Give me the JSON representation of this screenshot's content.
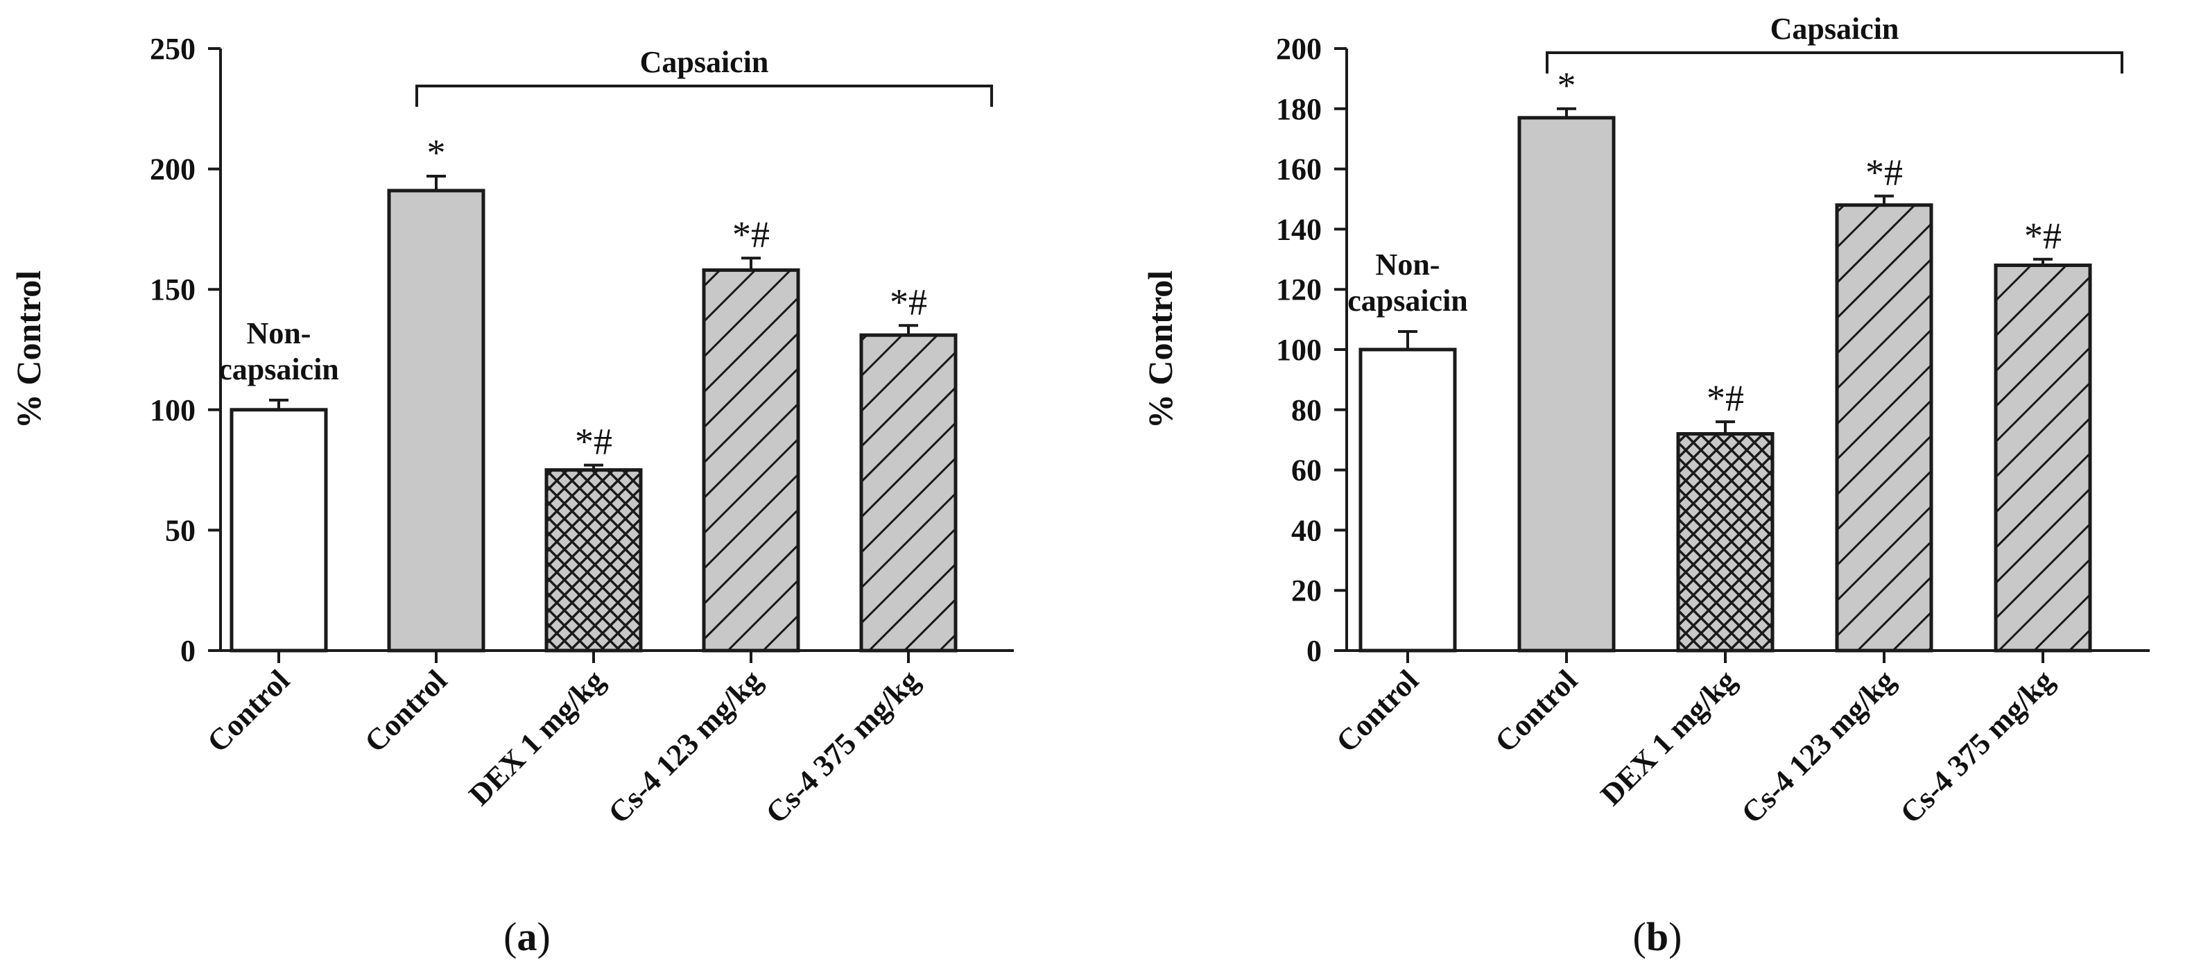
{
  "chart_data": [
    {
      "type": "bar",
      "panel_label": "(a)",
      "panel_letter": "a",
      "ylabel": "% Control",
      "xlabel": "",
      "ylim": [
        0,
        250
      ],
      "yticks": [
        0,
        50,
        100,
        150,
        200,
        250
      ],
      "categories": [
        "Control",
        "Control",
        "DEX 1 mg/kg",
        "Cs-4 123 mg/kg",
        "Cs-4 375 mg/kg"
      ],
      "values": [
        100,
        191,
        75,
        158,
        131
      ],
      "errors": [
        4,
        6,
        2,
        5,
        4
      ],
      "patterns": [
        "white",
        "solid-gray",
        "crosshatch",
        "diagonal",
        "diagonal"
      ],
      "significance": [
        "",
        "*",
        "*#",
        "*#",
        "*#"
      ],
      "annotation": "Non-\ncapsaicin",
      "bracket_label": "Capsaicin",
      "bracket_span": [
        1,
        4
      ]
    },
    {
      "type": "bar",
      "panel_label": "(b)",
      "panel_letter": "b",
      "ylabel": "% Control",
      "xlabel": "",
      "ylim": [
        0,
        200
      ],
      "yticks": [
        0,
        20,
        40,
        60,
        80,
        100,
        120,
        140,
        160,
        180,
        200
      ],
      "categories": [
        "Control",
        "Control",
        "DEX 1 mg/kg",
        "Cs-4 123 mg/kg",
        "Cs-4 375 mg/kg"
      ],
      "values": [
        100,
        177,
        72,
        148,
        128
      ],
      "errors": [
        6,
        3,
        4,
        3,
        2
      ],
      "patterns": [
        "white",
        "solid-gray",
        "crosshatch",
        "diagonal",
        "diagonal"
      ],
      "significance": [
        "",
        "*",
        "*#",
        "*#",
        "*#"
      ],
      "annotation": "Non-\ncapsaicin",
      "bracket_label": "Capsaicin",
      "bracket_span": [
        1,
        4
      ]
    }
  ],
  "colors": {
    "gray_fill": "#c8c8c8",
    "white_fill": "#ffffff",
    "stroke": "#1a1a1a"
  }
}
